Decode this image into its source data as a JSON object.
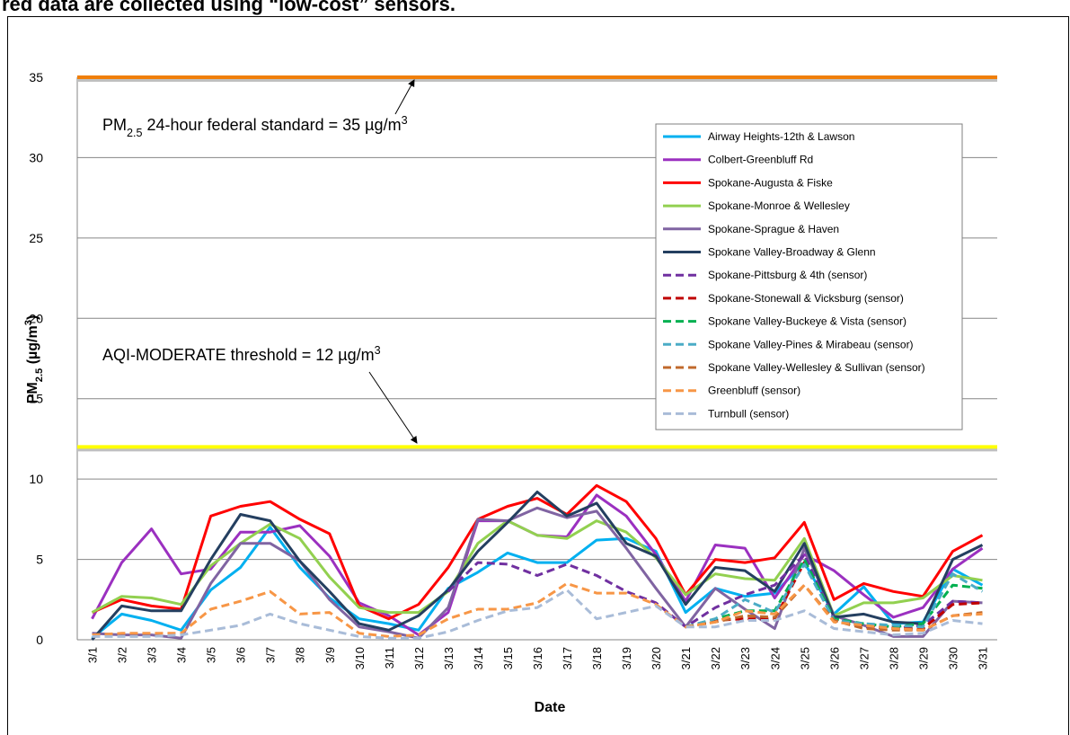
{
  "header_text": "red data are collected using “low-cost” sensors.",
  "chart_data": {
    "type": "line",
    "x_label": "Date",
    "y_label": {
      "parts": [
        "PM",
        "2.5",
        " (µg/m",
        "3",
        ")"
      ],
      "styles": [
        "normal",
        "sub",
        "normal",
        "sup",
        "normal"
      ]
    },
    "categories": [
      "3/1",
      "3/2",
      "3/3",
      "3/4",
      "3/5",
      "3/6",
      "3/7",
      "3/8",
      "3/9",
      "3/10",
      "3/11",
      "3/12",
      "3/13",
      "3/14",
      "3/15",
      "3/16",
      "3/17",
      "3/18",
      "3/19",
      "3/20",
      "3/21",
      "3/22",
      "3/23",
      "3/24",
      "3/25",
      "3/26",
      "3/27",
      "3/28",
      "3/29",
      "3/30",
      "3/31"
    ],
    "ylim": [
      0,
      35
    ],
    "yticks": [
      0,
      5,
      10,
      15,
      20,
      25,
      30,
      35
    ],
    "grid": true,
    "legend": "upper-right",
    "reference_lines": [
      {
        "value": 35,
        "color": "#f07f09"
      },
      {
        "value": 12,
        "color": "#ffff00"
      }
    ],
    "annotations": [
      {
        "parts": [
          "PM",
          "2.5",
          " 24-hour federal standard = 35 µg/m",
          "3"
        ],
        "styles": [
          "normal",
          "sub",
          "normal",
          "sup"
        ]
      },
      {
        "parts": [
          "AQI-MODERATE threshold = 12 µg/m",
          "3"
        ],
        "styles": [
          "normal",
          "sup"
        ]
      }
    ],
    "series": [
      {
        "name": "Airway Heights-12th & Lawson",
        "color": "#00b0f0",
        "dash": false,
        "values": [
          0.1,
          1.6,
          1.2,
          0.6,
          3.1,
          4.5,
          7.0,
          4.5,
          2.6,
          1.3,
          1.0,
          0.6,
          3.2,
          4.2,
          5.4,
          4.8,
          4.8,
          6.2,
          6.3,
          5.5,
          1.7,
          3.2,
          2.7,
          2.9,
          4.8,
          1.6,
          3.3,
          1.0,
          1.1,
          4.4,
          3.4
        ]
      },
      {
        "name": "Colbert-Greenbluff Rd",
        "color": "#9b30c0",
        "dash": false,
        "values": [
          1.3,
          4.8,
          6.9,
          4.1,
          4.4,
          6.7,
          6.7,
          7.1,
          5.2,
          2.3,
          1.5,
          0.3,
          1.7,
          7.4,
          7.4,
          6.5,
          6.4,
          9.0,
          7.7,
          5.3,
          2.4,
          5.9,
          5.7,
          2.6,
          5.3,
          4.3,
          2.8,
          1.4,
          2.0,
          4.4,
          5.7
        ]
      },
      {
        "name": "Spokane-Augusta & Fiske",
        "color": "#ff0000",
        "dash": false,
        "values": [
          1.7,
          2.5,
          2.1,
          1.9,
          7.7,
          8.3,
          8.6,
          7.5,
          6.6,
          2.1,
          1.3,
          2.2,
          4.5,
          7.5,
          8.3,
          8.8,
          7.8,
          9.6,
          8.6,
          6.3,
          2.8,
          5.0,
          4.8,
          5.1,
          7.3,
          2.5,
          3.5,
          3.0,
          2.7,
          5.5,
          6.5
        ]
      },
      {
        "name": "Spokane-Monroe & Wellesley",
        "color": "#92d050",
        "dash": false,
        "values": [
          1.7,
          2.7,
          2.6,
          2.2,
          4.6,
          6.0,
          7.2,
          6.3,
          3.9,
          2.0,
          1.7,
          1.7,
          3.0,
          6.0,
          7.4,
          6.5,
          6.3,
          7.4,
          6.7,
          5.1,
          2.8,
          4.1,
          3.8,
          3.7,
          6.3,
          1.5,
          2.3,
          2.3,
          2.6,
          4.0,
          3.7
        ]
      },
      {
        "name": "Spokane-Sprague & Haven",
        "color": "#8064a2",
        "dash": false,
        "values": [
          0.4,
          0.3,
          0.3,
          0.1,
          3.5,
          6.0,
          6.0,
          4.9,
          2.5,
          0.8,
          0.5,
          0.1,
          2.0,
          7.5,
          7.4,
          8.2,
          7.6,
          8.0,
          5.7,
          3.2,
          0.8,
          3.2,
          1.9,
          0.7,
          5.7,
          1.5,
          0.9,
          0.2,
          0.2,
          2.4,
          2.3
        ]
      },
      {
        "name": "Spokane Valley-Broadway & Glenn",
        "color": "#243f60",
        "dash": false,
        "values": [
          0.0,
          2.1,
          1.8,
          1.8,
          5.0,
          7.8,
          7.4,
          4.9,
          3.0,
          1.0,
          0.6,
          1.5,
          3.1,
          5.5,
          7.3,
          9.2,
          7.7,
          8.5,
          6.0,
          5.2,
          2.2,
          4.5,
          4.3,
          3.0,
          6.0,
          1.4,
          1.6,
          1.1,
          1.0,
          5.0,
          5.9
        ]
      },
      {
        "name": "Spokane-Pittsburg & 4th (sensor)",
        "color": "#7030a0",
        "dash": true,
        "values": [
          null,
          null,
          null,
          null,
          null,
          null,
          null,
          null,
          null,
          null,
          null,
          null,
          3.0,
          4.8,
          4.7,
          4.0,
          4.7,
          4.0,
          3.0,
          2.3,
          0.8,
          2.0,
          2.8,
          3.4,
          5.3,
          1.3,
          0.8,
          0.7,
          0.9,
          2.4,
          2.3
        ]
      },
      {
        "name": "Spokane-Stonewall & Vicksburg (sensor)",
        "color": "#c00000",
        "dash": true,
        "values": [
          null,
          null,
          null,
          null,
          null,
          null,
          null,
          null,
          null,
          null,
          null,
          null,
          null,
          null,
          null,
          null,
          null,
          null,
          null,
          null,
          0.8,
          1.2,
          1.3,
          1.3,
          4.8,
          1.2,
          0.9,
          0.8,
          0.7,
          2.2,
          2.3
        ]
      },
      {
        "name": "Spokane Valley-Buckeye & Vista (sensor)",
        "color": "#00b050",
        "dash": true,
        "values": [
          null,
          null,
          null,
          null,
          null,
          null,
          null,
          null,
          null,
          null,
          null,
          null,
          null,
          null,
          null,
          null,
          null,
          null,
          null,
          null,
          0.8,
          1.3,
          1.8,
          1.8,
          5.0,
          1.3,
          1.0,
          0.8,
          1.0,
          3.4,
          3.2
        ]
      },
      {
        "name": "Spokane Valley-Pines & Mirabeau (sensor)",
        "color": "#4bacc6",
        "dash": true,
        "values": [
          null,
          null,
          null,
          null,
          null,
          null,
          null,
          null,
          null,
          null,
          null,
          null,
          null,
          null,
          null,
          null,
          null,
          null,
          null,
          null,
          0.8,
          1.3,
          2.5,
          1.7,
          4.7,
          1.2,
          1.0,
          0.9,
          0.8,
          4.1,
          3.0
        ]
      },
      {
        "name": "Spokane Valley-Wellesley & Sullivan (sensor)",
        "color": "#c0692c",
        "dash": true,
        "values": [
          null,
          null,
          null,
          null,
          null,
          null,
          null,
          null,
          null,
          null,
          null,
          null,
          null,
          null,
          null,
          null,
          null,
          null,
          null,
          null,
          0.8,
          1.1,
          1.5,
          1.4,
          3.4,
          1.2,
          0.7,
          0.6,
          0.6,
          1.5,
          1.7
        ]
      },
      {
        "name": "Greenbluff (sensor)",
        "color": "#f79646",
        "dash": true,
        "values": [
          0.3,
          0.4,
          0.4,
          0.4,
          1.9,
          2.4,
          3.0,
          1.6,
          1.7,
          0.4,
          0.2,
          0.3,
          1.3,
          1.9,
          1.9,
          2.3,
          3.5,
          2.9,
          2.9,
          2.2,
          0.8,
          1.1,
          1.8,
          1.6,
          3.4,
          1.1,
          0.9,
          0.7,
          0.6,
          1.5,
          1.6
        ]
      },
      {
        "name": "Turnbull (sensor)",
        "color": "#a9bcd8",
        "dash": true,
        "values": [
          0.2,
          0.2,
          0.2,
          0.3,
          0.6,
          0.9,
          1.6,
          1.0,
          0.6,
          0.2,
          0.1,
          0.1,
          0.5,
          1.2,
          1.8,
          2.0,
          3.1,
          1.3,
          1.7,
          2.1,
          0.8,
          0.8,
          1.2,
          1.2,
          1.8,
          0.7,
          0.5,
          0.3,
          0.4,
          1.2,
          1.0
        ]
      }
    ]
  }
}
